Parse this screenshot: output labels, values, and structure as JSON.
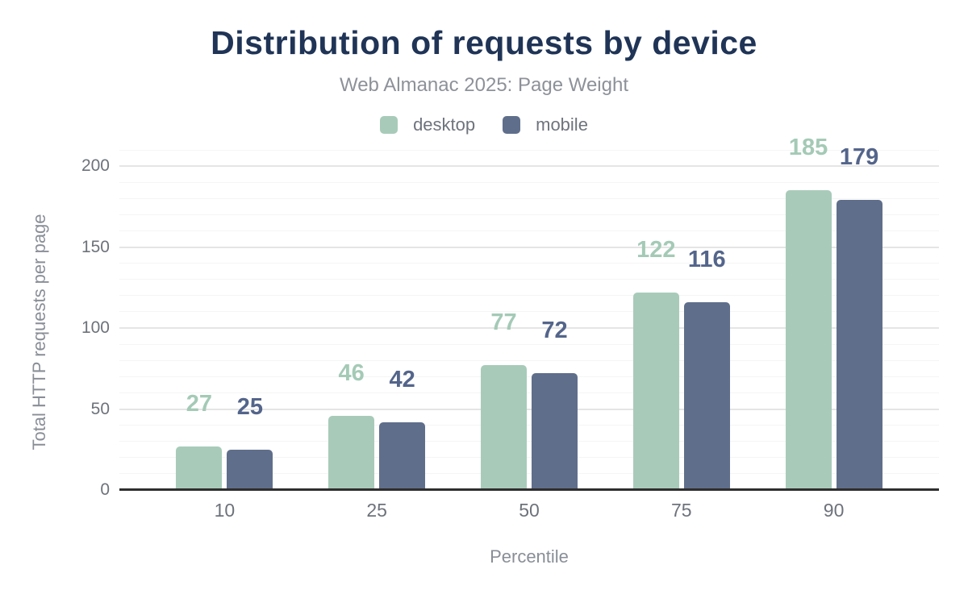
{
  "chart_data": {
    "type": "bar",
    "title": "Distribution of requests by device",
    "subtitle": "Web Almanac 2025: Page Weight",
    "categories": [
      "10",
      "25",
      "50",
      "75",
      "90"
    ],
    "series": [
      {
        "name": "desktop",
        "color": "#a8cbb9",
        "label_color": "#a4cab6",
        "values": [
          27,
          46,
          77,
          122,
          185
        ]
      },
      {
        "name": "mobile",
        "color": "#5f6e8b",
        "label_color": "#54658b",
        "values": [
          25,
          42,
          72,
          116,
          179
        ]
      }
    ],
    "xlabel": "Percentile",
    "ylabel": "Total HTTP requests per page",
    "ylim": [
      0,
      210
    ],
    "yticks": [
      0,
      50,
      100,
      150,
      200
    ],
    "grid": {
      "minor_step": 10,
      "major_step": 50,
      "visible": true
    },
    "legend_position": "top",
    "value_labels_shown": true
  },
  "colors": {
    "title": "#1f3456",
    "subtitle": "#8d9199",
    "legend_text": "#6e737d",
    "tick_text": "#6d727b",
    "axis_title": "#898e97",
    "grid_minor": "#f5f5f5",
    "grid_major": "#e5e5e5",
    "baseline": "#2e2e2e",
    "background": "#ffffff"
  }
}
